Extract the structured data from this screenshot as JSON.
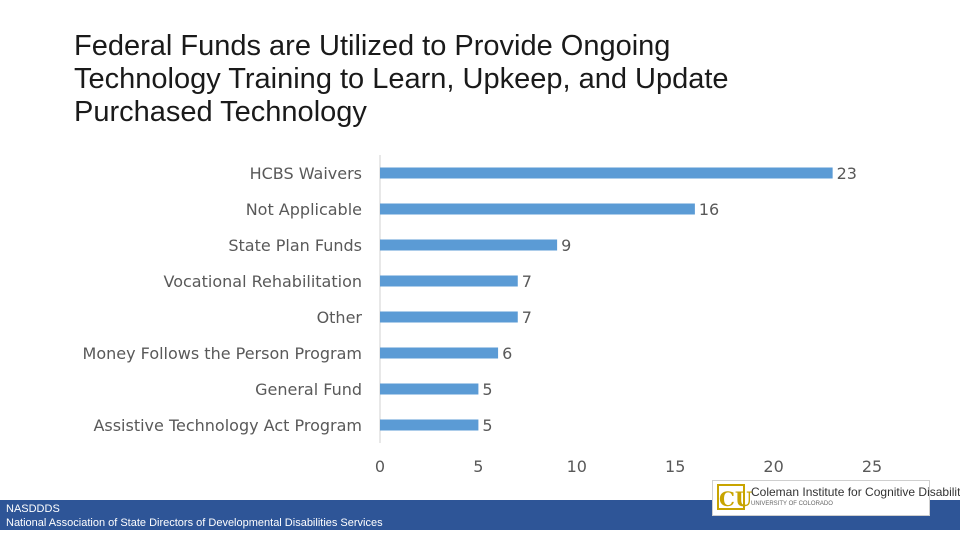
{
  "title": {
    "lines": [
      "Federal Funds are Utilized to Provide Ongoing",
      "Technology Training to Learn, Upkeep, and Update",
      "Purchased Technology"
    ]
  },
  "chart_data": {
    "type": "bar",
    "orientation": "horizontal",
    "categories": [
      "HCBS Waivers",
      "Not Applicable",
      "State Plan Funds",
      "Vocational Rehabilitation",
      "Other",
      "Money Follows the Person Program",
      "General Fund",
      "Assistive Technology Act Program"
    ],
    "values": [
      23,
      16,
      9,
      7,
      7,
      6,
      5,
      5
    ],
    "xlim": [
      0,
      25
    ],
    "xticks": [
      0,
      5,
      10,
      15,
      20,
      25
    ],
    "grid": false,
    "data_labels": true,
    "bar_color": "#5b9bd5"
  },
  "footer": {
    "line1": "NASDDDS",
    "line2": "National Association of State Directors of Developmental Disabilities Services"
  },
  "logo": {
    "name": "Coleman Institute for Cognitive Disabilities",
    "subtitle": "UNIVERSITY OF COLORADO",
    "icon": "cu-logo-icon"
  }
}
